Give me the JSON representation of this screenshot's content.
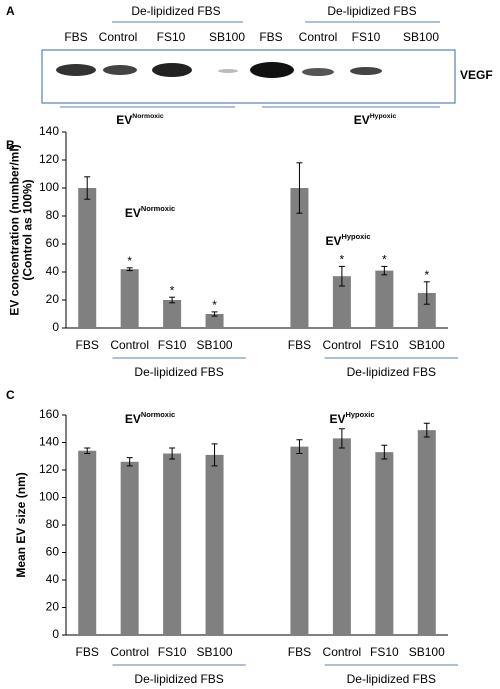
{
  "blot": {
    "panel": "A",
    "group_labels": [
      "De-lipidized FBS",
      "De-lipidized FBS"
    ],
    "lanes": [
      "FBS",
      "Control",
      "FS10",
      "SB100",
      "FBS",
      "Control",
      "FS10",
      "SB100"
    ],
    "protein": "VEGF",
    "conditions": [
      {
        "text": "EV",
        "sup": "Normoxic"
      },
      {
        "text": "EV",
        "sup": "Hypoxic"
      }
    ]
  },
  "chart_data": [
    {
      "type": "bar",
      "panel": "B",
      "ylabel": [
        "EV concentration (number/ml)",
        "(Control as 100%)"
      ],
      "categories": [
        "FBS",
        "Control",
        "FS10",
        "SB100",
        null,
        "FBS",
        "Control",
        "FS10",
        "SB100"
      ],
      "values": [
        100,
        42,
        20,
        10,
        null,
        100,
        37,
        41,
        25
      ],
      "errors": [
        8,
        1,
        2,
        1.5,
        null,
        18,
        7,
        3,
        8
      ],
      "markers": [
        null,
        "*",
        "*",
        "*",
        null,
        null,
        "*",
        "*",
        "*"
      ],
      "color": "#808080",
      "ylim": [
        0,
        140
      ],
      "yticks": [
        0,
        20,
        40,
        60,
        80,
        100,
        120,
        140
      ],
      "group_labels": [
        "De-lipidized FBS",
        "De-lipidized FBS"
      ],
      "annotations": [
        {
          "text": "EV",
          "sup": "Normoxic"
        },
        {
          "text": "EV",
          "sup": "Hypoxic"
        }
      ]
    },
    {
      "type": "bar",
      "panel": "C",
      "ylabel": [
        "Mean EV size (nm)"
      ],
      "categories": [
        "FBS",
        "Control",
        "FS10",
        "SB100",
        null,
        "FBS",
        "Control",
        "FS10",
        "SB100"
      ],
      "values": [
        134,
        126,
        132,
        131,
        null,
        137,
        143,
        133,
        149
      ],
      "errors": [
        2,
        3,
        4,
        8,
        null,
        5,
        7,
        5,
        5
      ],
      "color": "#808080",
      "ylim": [
        0,
        160
      ],
      "yticks": [
        0,
        20,
        40,
        60,
        80,
        100,
        120,
        140,
        160
      ],
      "group_labels": [
        "De-lipidized FBS",
        "De-lipidized FBS"
      ],
      "annotations": [
        {
          "text": "EV",
          "sup": "Normoxic"
        },
        {
          "text": "EV",
          "sup": "Hypoxic"
        }
      ]
    }
  ]
}
